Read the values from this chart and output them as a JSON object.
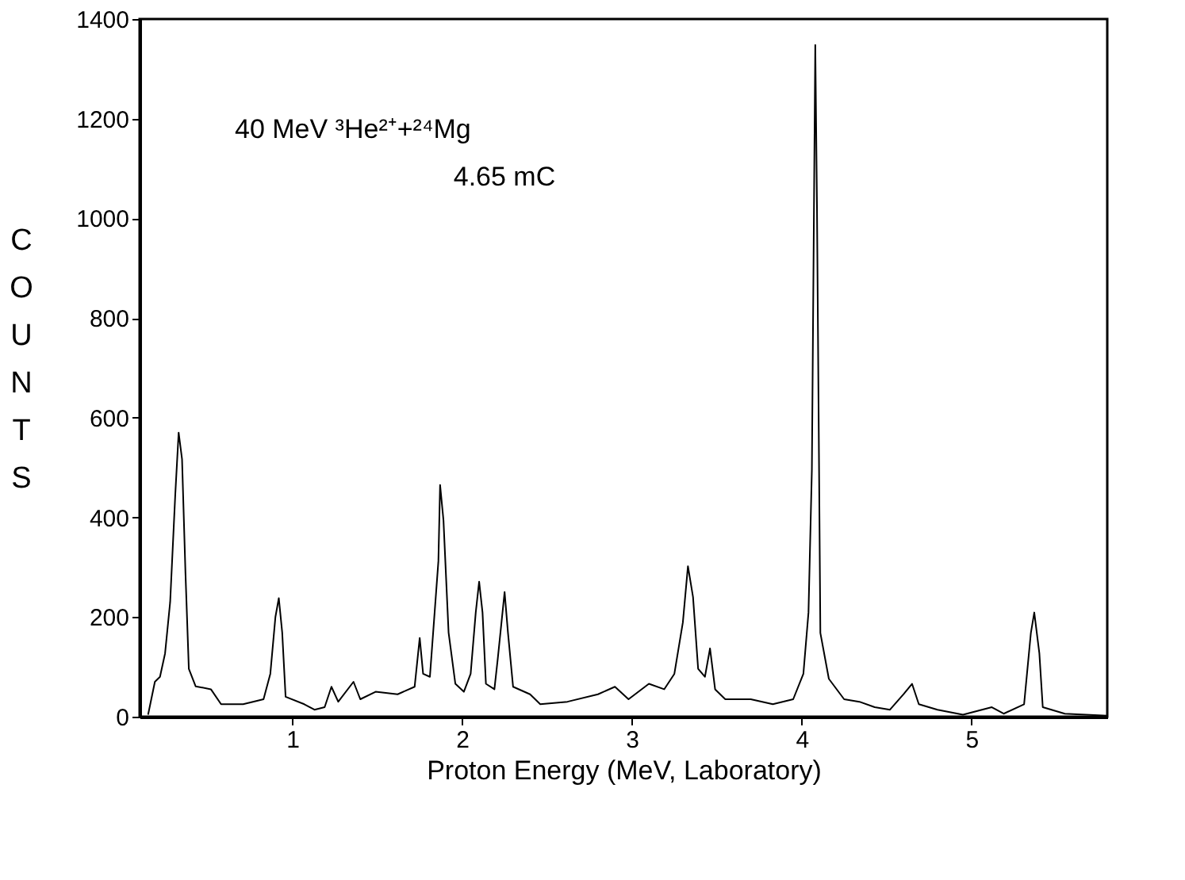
{
  "chart_data": {
    "type": "line",
    "xlabel": "Proton Energy (MeV, Laboratory)",
    "ylabel": "COUNTS",
    "xlim": [
      0.1,
      5.8
    ],
    "ylim": [
      0,
      1400
    ],
    "xticks": [
      1,
      2,
      3,
      4,
      5
    ],
    "yticks": [
      0,
      200,
      400,
      600,
      800,
      1000,
      1200,
      1400
    ],
    "grid": false,
    "legend": false,
    "marker": "none",
    "line_style": "solid",
    "annotations": [
      "40 MeV  ³He²⁺+²⁴Mg",
      "4.65 mC"
    ],
    "x": [
      0.15,
      0.19,
      0.22,
      0.25,
      0.28,
      0.31,
      0.33,
      0.35,
      0.37,
      0.39,
      0.43,
      0.52,
      0.58,
      0.71,
      0.83,
      0.87,
      0.9,
      0.92,
      0.94,
      0.96,
      1.07,
      1.13,
      1.19,
      1.23,
      1.27,
      1.36,
      1.4,
      1.49,
      1.62,
      1.72,
      1.75,
      1.77,
      1.81,
      1.86,
      1.87,
      1.89,
      1.92,
      1.96,
      2.01,
      2.05,
      2.08,
      2.1,
      2.12,
      2.14,
      2.19,
      2.21,
      2.25,
      2.27,
      2.3,
      2.4,
      2.46,
      2.62,
      2.8,
      2.9,
      2.98,
      3.1,
      3.19,
      3.25,
      3.3,
      3.33,
      3.36,
      3.39,
      3.43,
      3.46,
      3.49,
      3.55,
      3.7,
      3.83,
      3.95,
      4.01,
      4.04,
      4.06,
      4.08,
      4.09,
      4.11,
      4.16,
      4.25,
      4.34,
      4.43,
      4.52,
      4.6,
      4.65,
      4.69,
      4.8,
      4.95,
      5.12,
      5.19,
      5.31,
      5.35,
      5.37,
      5.4,
      5.42,
      5.55,
      5.8
    ],
    "series": [
      {
        "color": "#000000",
        "values": [
          4,
          70,
          80,
          127,
          230,
          445,
          570,
          517,
          290,
          96,
          61,
          55,
          25,
          25,
          35,
          86,
          200,
          238,
          169,
          40,
          25,
          14,
          19,
          60,
          30,
          70,
          35,
          50,
          45,
          60,
          158,
          86,
          80,
          312,
          465,
          394,
          169,
          66,
          50,
          86,
          209,
          271,
          209,
          66,
          55,
          117,
          250,
          168,
          60,
          45,
          25,
          30,
          45,
          60,
          35,
          66,
          55,
          86,
          189,
          302,
          240,
          96,
          80,
          137,
          55,
          35,
          35,
          25,
          35,
          86,
          209,
          496,
          1348,
          1025,
          168,
          76,
          35,
          30,
          19,
          14,
          45,
          66,
          25,
          14,
          4,
          19,
          6,
          25,
          168,
          209,
          127,
          19,
          6,
          2
        ]
      }
    ]
  }
}
